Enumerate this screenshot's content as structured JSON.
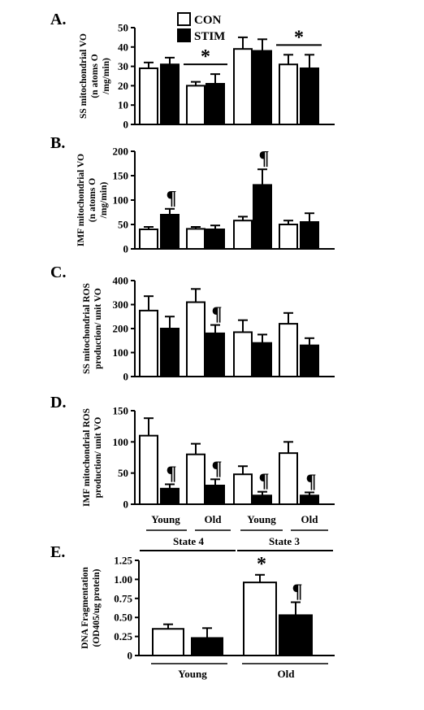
{
  "legend": [
    {
      "label": "CON",
      "fill": "#ffffff"
    },
    {
      "label": "STIM",
      "fill": "#000000"
    }
  ],
  "state_labels": [
    "State 4",
    "State 3"
  ],
  "age_labels": [
    "Young",
    "Old",
    "Young",
    "Old"
  ],
  "chart_data": [
    {
      "type": "bar",
      "panel": "A.",
      "ylabel_lines": [
        "SS mitochondrial VO",
        "(n atoms O",
        "/mg/min)"
      ],
      "ylim": [
        0,
        50
      ],
      "yticks": [
        0,
        10,
        20,
        30,
        40,
        50
      ],
      "series": [
        {
          "name": "CON",
          "values": [
            29,
            20,
            39,
            31
          ],
          "errors": [
            3,
            2,
            6,
            5
          ]
        },
        {
          "name": "STIM",
          "values": [
            31,
            21,
            38,
            29
          ],
          "errors": [
            3.5,
            5,
            6,
            7
          ]
        }
      ],
      "annotations": [
        {
          "text": "*",
          "bracket_over_groups": 1
        },
        {
          "text": "*",
          "bracket_over_groups": 3
        }
      ]
    },
    {
      "type": "bar",
      "panel": "B.",
      "ylabel_lines": [
        "IMF mitochondrial VO",
        "(n atoms O",
        "/mg/min)"
      ],
      "ylim": [
        0,
        200
      ],
      "yticks": [
        0,
        50,
        100,
        150,
        200
      ],
      "series": [
        {
          "name": "CON",
          "values": [
            40,
            41,
            58,
            50
          ],
          "errors": [
            5,
            4,
            8,
            8
          ]
        },
        {
          "name": "STIM",
          "values": [
            70,
            40,
            131,
            55
          ],
          "errors": [
            12,
            8,
            32,
            18
          ]
        }
      ],
      "annotations": [
        {
          "text": "¶",
          "group": 0,
          "series": "STIM"
        },
        {
          "text": "¶",
          "group": 2,
          "series": "STIM"
        }
      ]
    },
    {
      "type": "bar",
      "panel": "C.",
      "ylabel_lines": [
        "SS mitochondrial ROS",
        "production/ unit VO"
      ],
      "ylim": [
        0,
        400
      ],
      "yticks": [
        0,
        100,
        200,
        300,
        400
      ],
      "series": [
        {
          "name": "CON",
          "values": [
            275,
            310,
            185,
            220
          ],
          "errors": [
            60,
            55,
            50,
            45
          ]
        },
        {
          "name": "STIM",
          "values": [
            200,
            180,
            140,
            130
          ],
          "errors": [
            50,
            35,
            35,
            30
          ]
        }
      ],
      "annotations": [
        {
          "text": "¶",
          "group": 1,
          "series": "STIM"
        }
      ]
    },
    {
      "type": "bar",
      "panel": "D.",
      "ylabel_lines": [
        "IMF mitochondrial ROS",
        "production/ unit VO"
      ],
      "ylim": [
        0,
        150
      ],
      "yticks": [
        0,
        50,
        100,
        150
      ],
      "series": [
        {
          "name": "CON",
          "values": [
            110,
            80,
            48,
            82
          ],
          "errors": [
            28,
            17,
            13,
            18
          ]
        },
        {
          "name": "STIM",
          "values": [
            25,
            30,
            14,
            14
          ],
          "errors": [
            7,
            10,
            6,
            5
          ]
        }
      ],
      "annotations": [
        {
          "text": "¶",
          "group": 0,
          "series": "STIM"
        },
        {
          "text": "¶",
          "group": 1,
          "series": "STIM"
        },
        {
          "text": "¶",
          "group": 2,
          "series": "STIM"
        },
        {
          "text": "¶",
          "group": 3,
          "series": "STIM"
        }
      ]
    },
    {
      "type": "bar",
      "panel": "E.",
      "ylabel_lines": [
        "DNA Fragmentation",
        "(OD405/ug protein)"
      ],
      "ylim": [
        0,
        1.25
      ],
      "yticks": [
        "0",
        "0.25",
        "0.50",
        "0.75",
        "1.00",
        "1.25"
      ],
      "categories": [
        "Young",
        "Old"
      ],
      "series": [
        {
          "name": "CON",
          "values": [
            0.35,
            0.96
          ],
          "errors": [
            0.06,
            0.1
          ]
        },
        {
          "name": "STIM",
          "values": [
            0.23,
            0.53
          ],
          "errors": [
            0.13,
            0.17
          ]
        }
      ],
      "annotations": [
        {
          "text": "*",
          "group": 1,
          "series": "CON"
        },
        {
          "text": "¶",
          "group": 1,
          "series": "STIM"
        }
      ]
    }
  ]
}
